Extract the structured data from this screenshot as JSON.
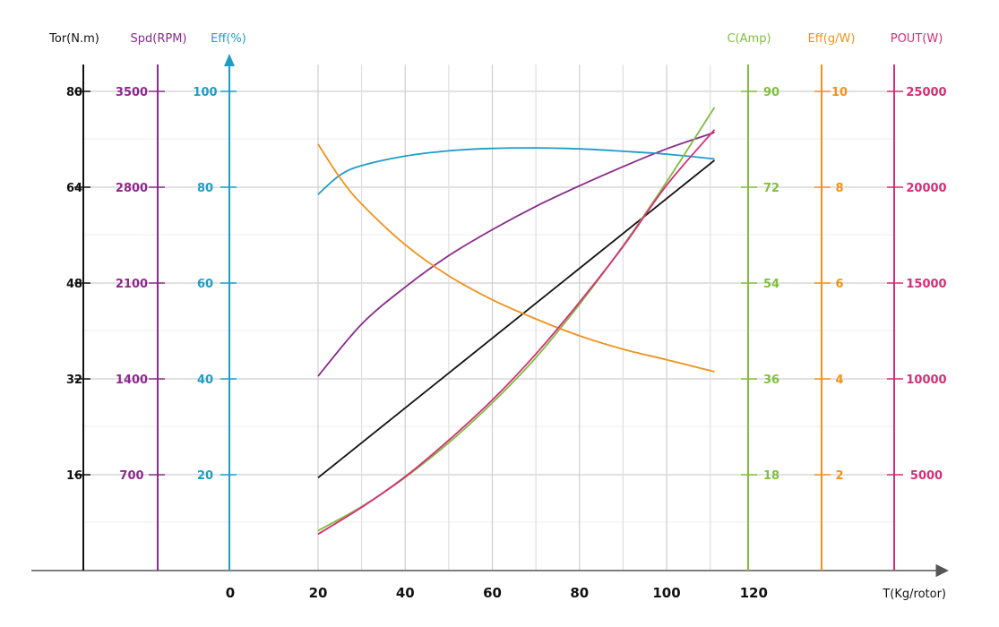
{
  "chart_data": {
    "type": "line",
    "xlabel": "T(Kg/rotor)",
    "x_ticks": [
      "0",
      "20",
      "40",
      "60",
      "80",
      "100",
      "120"
    ],
    "xlim": [
      0,
      120
    ],
    "axes": [
      {
        "key": "tor",
        "label": "Tor(N.m)",
        "color": "#111111",
        "ticks": [
          "80",
          "64",
          "48",
          "32",
          "16"
        ],
        "ylim": [
          0,
          80
        ]
      },
      {
        "key": "spd",
        "label": "Spd(RPM)",
        "color": "#8b2a8c",
        "ticks": [
          "3500",
          "2800",
          "2100",
          "1400",
          "700"
        ],
        "ylim": [
          0,
          3500
        ]
      },
      {
        "key": "eff",
        "label": "Eff(%)",
        "color": "#1e9cc8",
        "ticks": [
          "100",
          "80",
          "60",
          "40",
          "20"
        ],
        "ylim": [
          0,
          100
        ]
      },
      {
        "key": "amp",
        "label": "C(Amp)",
        "color": "#7fbe3f",
        "ticks": [
          "90",
          "72",
          "54",
          "36",
          "18"
        ],
        "ylim": [
          0,
          90
        ]
      },
      {
        "key": "gw",
        "label": "Eff(g/W)",
        "color": "#f0921c",
        "ticks": [
          "10",
          "8",
          "6",
          "4",
          "2"
        ],
        "ylim": [
          0,
          10
        ]
      },
      {
        "key": "pout",
        "label": "POUT(W)",
        "color": "#d62d78",
        "ticks": [
          "25000",
          "20000",
          "15000",
          "10000",
          "5000"
        ],
        "ylim": [
          0,
          25000
        ]
      }
    ],
    "series": [
      {
        "axis": "tor",
        "color": "#111111",
        "x": [
          20,
          111
        ],
        "y": [
          15.5,
          68.5
        ]
      },
      {
        "axis": "spd",
        "color": "#8b2a8c",
        "x": [
          20,
          30,
          40,
          50,
          60,
          70,
          80,
          90,
          100,
          111
        ],
        "y": [
          1420,
          1800,
          2070,
          2300,
          2490,
          2660,
          2810,
          2950,
          3080,
          3200
        ]
      },
      {
        "axis": "eff",
        "color": "#1e9cc8",
        "x": [
          20,
          25,
          30,
          40,
          50,
          60,
          70,
          80,
          90,
          100,
          111
        ],
        "y": [
          78.5,
          82.5,
          84.5,
          86.5,
          87.6,
          88.1,
          88.2,
          88.0,
          87.5,
          86.9,
          85.9
        ]
      },
      {
        "axis": "amp",
        "color": "#7fbe3f",
        "x": [
          20,
          30,
          40,
          50,
          60,
          70,
          80,
          90,
          100,
          111
        ],
        "y": [
          7.5,
          12.0,
          17.5,
          24.0,
          31.5,
          40.0,
          50.0,
          61.0,
          73.0,
          87.0
        ]
      },
      {
        "axis": "gw",
        "color": "#f0921c",
        "x": [
          20,
          25,
          30,
          40,
          50,
          60,
          70,
          80,
          90,
          100,
          111
        ],
        "y": [
          8.9,
          8.2,
          7.65,
          6.8,
          6.15,
          5.65,
          5.25,
          4.9,
          4.62,
          4.4,
          4.15
        ]
      },
      {
        "axis": "pout",
        "color": "#d62d78",
        "x": [
          20,
          30,
          40,
          50,
          60,
          70,
          80,
          90,
          100,
          111
        ],
        "y": [
          1900,
          3300,
          4900,
          6800,
          8900,
          11300,
          14000,
          16900,
          20100,
          23000
        ]
      }
    ],
    "grid": true
  }
}
